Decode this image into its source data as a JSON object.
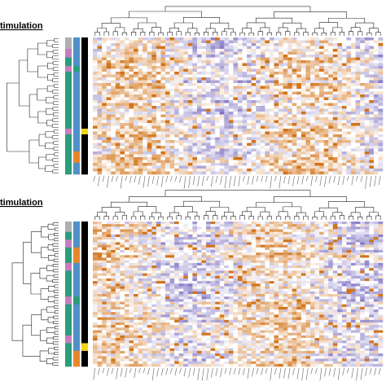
{
  "chart_data": [
    {
      "type": "heatmap",
      "title": "timulation",
      "n_rows": 48,
      "n_cols": 64,
      "row_groups": [
        {
          "rows": 4,
          "c1": "#b0b0b0",
          "c2": "#4f90c8",
          "c3": "#000000"
        },
        {
          "rows": 3,
          "c1": "#c77dbd",
          "c2": "#4f90c8",
          "c3": "#000000"
        },
        {
          "rows": 3,
          "c1": "#2a9d7a",
          "c2": "#4f90c8",
          "c3": "#000000"
        },
        {
          "rows": 2,
          "c1": "#c77dbd",
          "c2": "#2a9d7a",
          "c3": "#000000"
        },
        {
          "rows": 20,
          "c1": "#2a9d7a",
          "c2": "#4f90c8",
          "c3": "#000000"
        },
        {
          "rows": 2,
          "c1": "#c77dbd",
          "c2": "#4f90c8",
          "c3": "#f2d41a"
        },
        {
          "rows": 6,
          "c1": "#2a9d7a",
          "c2": "#4f90c8",
          "c3": "#000000"
        },
        {
          "rows": 4,
          "c1": "#2a9d7a",
          "c2": "#e8862b",
          "c3": "#000000"
        },
        {
          "rows": 4,
          "c1": "#2a9d7a",
          "c2": "#4f90c8",
          "c3": "#000000"
        }
      ],
      "colors": {
        "low": "#5a4bb0",
        "mid": "#ffffff",
        "high": "#d2741a"
      }
    },
    {
      "type": "heatmap",
      "title": "timulation",
      "n_rows": 56,
      "n_cols": 64,
      "row_groups": [
        {
          "rows": 4,
          "c1": "#b0b0b0",
          "c2": "#4f90c8",
          "c3": "#000000"
        },
        {
          "rows": 3,
          "c1": "#2a9d7a",
          "c2": "#4f90c8",
          "c3": "#000000"
        },
        {
          "rows": 3,
          "c1": "#c77dbd",
          "c2": "#4f90c8",
          "c3": "#000000"
        },
        {
          "rows": 6,
          "c1": "#2a9d7a",
          "c2": "#e8862b",
          "c3": "#000000"
        },
        {
          "rows": 3,
          "c1": "#c77dbd",
          "c2": "#4f90c8",
          "c3": "#000000"
        },
        {
          "rows": 10,
          "c1": "#2a9d7a",
          "c2": "#4f90c8",
          "c3": "#000000"
        },
        {
          "rows": 3,
          "c1": "#c77dbd",
          "c2": "#2a9d7a",
          "c3": "#000000"
        },
        {
          "rows": 12,
          "c1": "#2a9d7a",
          "c2": "#4f90c8",
          "c3": "#000000"
        },
        {
          "rows": 3,
          "c1": "#c77dbd",
          "c2": "#4f90c8",
          "c3": "#000000"
        },
        {
          "rows": 3,
          "c1": "#2a9d7a",
          "c2": "#4f90c8",
          "c3": "#f2d41a"
        },
        {
          "rows": 6,
          "c1": "#2a9d7a",
          "c2": "#e8862b",
          "c3": "#000000"
        }
      ],
      "colors": {
        "low": "#5a4bb0",
        "mid": "#ffffff",
        "high": "#d2741a"
      }
    }
  ]
}
